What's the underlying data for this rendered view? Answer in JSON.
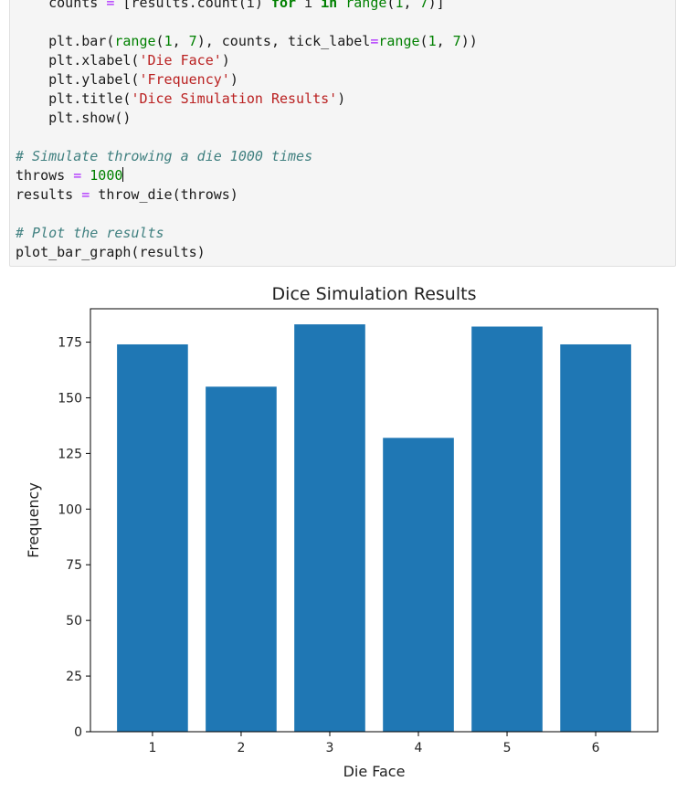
{
  "notebook": {
    "code_lines": [
      [
        {
          "t": "    counts "
        },
        {
          "t": "=",
          "c": "op"
        },
        {
          "t": " [results.count(i) "
        },
        {
          "t": "for",
          "c": "kw"
        },
        {
          "t": " i "
        },
        {
          "t": "in",
          "c": "kw"
        },
        {
          "t": " "
        },
        {
          "t": "range",
          "c": "bi"
        },
        {
          "t": "("
        },
        {
          "t": "1",
          "c": "nm"
        },
        {
          "t": ", "
        },
        {
          "t": "7",
          "c": "nm"
        },
        {
          "t": ")]"
        }
      ],
      [
        {
          "t": ""
        }
      ],
      [
        {
          "t": "    plt.bar("
        },
        {
          "t": "range",
          "c": "bi"
        },
        {
          "t": "("
        },
        {
          "t": "1",
          "c": "nm"
        },
        {
          "t": ", "
        },
        {
          "t": "7",
          "c": "nm"
        },
        {
          "t": "), counts, tick_label"
        },
        {
          "t": "=",
          "c": "op"
        },
        {
          "t": "range",
          "c": "bi"
        },
        {
          "t": "("
        },
        {
          "t": "1",
          "c": "nm"
        },
        {
          "t": ", "
        },
        {
          "t": "7",
          "c": "nm"
        },
        {
          "t": "))"
        }
      ],
      [
        {
          "t": "    plt.xlabel("
        },
        {
          "t": "'Die Face'",
          "c": "st"
        },
        {
          "t": ")"
        }
      ],
      [
        {
          "t": "    plt.ylabel("
        },
        {
          "t": "'Frequency'",
          "c": "st"
        },
        {
          "t": ")"
        }
      ],
      [
        {
          "t": "    plt.title("
        },
        {
          "t": "'Dice Simulation Results'",
          "c": "st"
        },
        {
          "t": ")"
        }
      ],
      [
        {
          "t": "    plt.show()"
        }
      ],
      [
        {
          "t": ""
        }
      ],
      [
        {
          "t": "# Simulate throwing a die 1000 times",
          "c": "cm"
        }
      ],
      [
        {
          "t": "throws "
        },
        {
          "t": "=",
          "c": "op"
        },
        {
          "t": " "
        },
        {
          "t": "1000",
          "c": "nm"
        },
        {
          "caret": true
        }
      ],
      [
        {
          "t": "results "
        },
        {
          "t": "=",
          "c": "op"
        },
        {
          "t": " throw_die(throws)"
        }
      ],
      [
        {
          "t": ""
        }
      ],
      [
        {
          "t": "# Plot the results",
          "c": "cm"
        }
      ],
      [
        {
          "t": "plot_bar_graph(results)"
        }
      ]
    ]
  },
  "chart_data": {
    "type": "bar",
    "title": "Dice Simulation Results",
    "xlabel": "Die Face",
    "ylabel": "Frequency",
    "categories": [
      "1",
      "2",
      "3",
      "4",
      "5",
      "6"
    ],
    "values": [
      174,
      155,
      183,
      132,
      182,
      174
    ],
    "ylim": [
      0,
      190
    ],
    "yticks": [
      0,
      25,
      50,
      75,
      100,
      125,
      150,
      175
    ],
    "bar_color": "#1f77b4",
    "grid": false
  }
}
